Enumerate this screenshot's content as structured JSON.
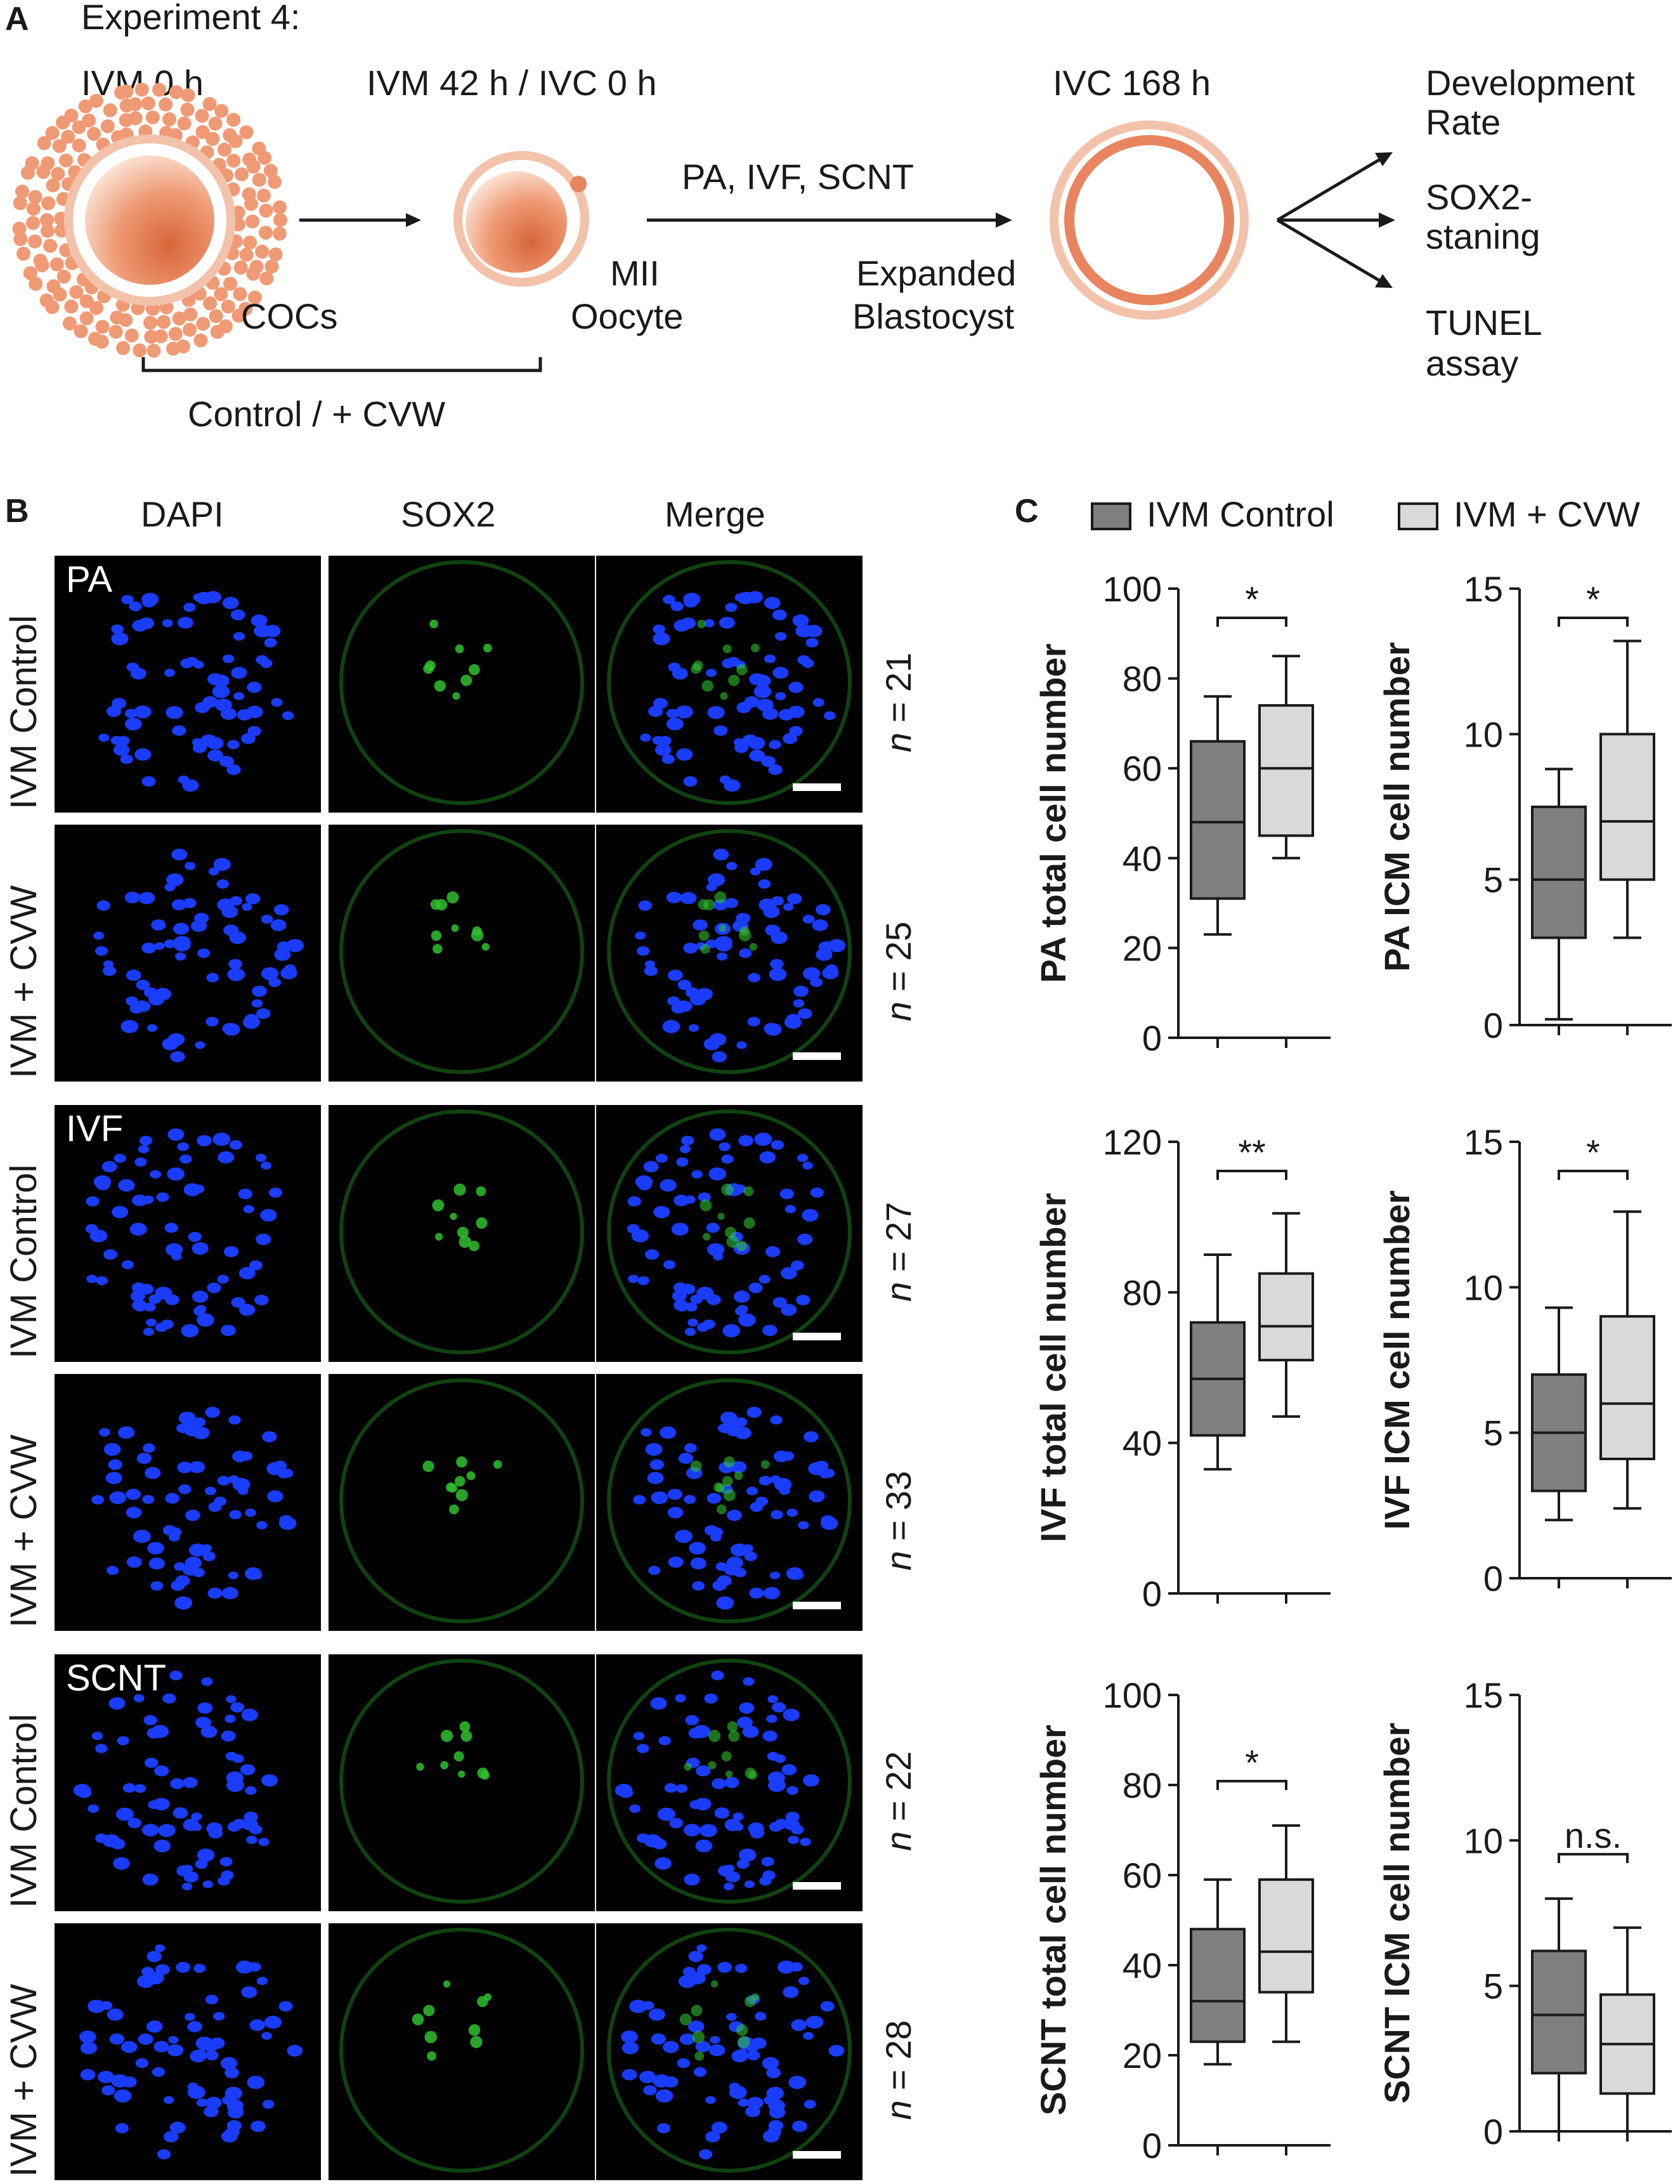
{
  "panel_a": {
    "letter": "A",
    "title": "Experiment 4:",
    "stage_ivm0": "IVM 0 h",
    "stage_ivm42": "IVM 42 h / IVC 0 h",
    "stage_ivc168": "IVC 168 h",
    "cocs": "COCs",
    "mii_line1": "MII",
    "mii_line2": "Oocyte",
    "methods": "PA, IVF, SCNT",
    "blast_line1": "Expanded",
    "blast_line2": "Blastocyst",
    "bracket_label": "Control / + CVW",
    "outcome1_line1": "Development",
    "outcome1_line2": "Rate",
    "outcome2_line1": "SOX2-",
    "outcome2_line2": "staning",
    "outcome3_line1": "TUNEL",
    "outcome3_line2": "assay",
    "colors": {
      "orange": "#e8855f",
      "light_orange": "#f3c2ab",
      "cell_fill": "#f09a75"
    }
  },
  "panel_b": {
    "letter": "B",
    "col_headers": [
      "DAPI",
      "SOX2",
      "Merge"
    ],
    "groups": [
      {
        "label": "PA",
        "rows": [
          {
            "condition": "IVM Control",
            "n_prefix": "n",
            "n_value": " = 21"
          },
          {
            "condition": "IVM + CVW",
            "n_prefix": "n",
            "n_value": " = 25"
          }
        ]
      },
      {
        "label": "IVF",
        "rows": [
          {
            "condition": "IVM Control",
            "n_prefix": "n",
            "n_value": " = 27"
          },
          {
            "condition": "IVM + CVW",
            "n_prefix": "n",
            "n_value": " = 33"
          }
        ]
      },
      {
        "label": "SCNT",
        "rows": [
          {
            "condition": "IVM Control",
            "n_prefix": "n",
            "n_value": " = 22"
          },
          {
            "condition": "IVM + CVW",
            "n_prefix": "n",
            "n_value": " = 28"
          }
        ]
      }
    ],
    "colors": {
      "dapi": "#1a3cff",
      "sox2": "#2fbf2f",
      "background": "#000000"
    }
  },
  "panel_c": {
    "letter": "C",
    "legend": [
      {
        "label": "IVM Control",
        "color": "#7f7f7f"
      },
      {
        "label": "IVM + CVW",
        "color": "#d9d9d9"
      }
    ]
  },
  "chart_data": [
    {
      "type": "box",
      "ylabel": "PA total cell number",
      "ylim": [
        0,
        100
      ],
      "yticks": [
        0,
        20,
        40,
        60,
        80,
        100
      ],
      "significance": "*",
      "series": [
        {
          "name": "IVM Control",
          "min": 23,
          "q1": 31,
          "median": 48,
          "q3": 66,
          "max": 76
        },
        {
          "name": "IVM + CVW",
          "min": 40,
          "q1": 45,
          "median": 60,
          "q3": 74,
          "max": 85
        }
      ]
    },
    {
      "type": "box",
      "ylabel": "PA ICM cell number",
      "ylim": [
        0,
        15
      ],
      "yticks": [
        0,
        5,
        10,
        15
      ],
      "significance": "*",
      "series": [
        {
          "name": "IVM Control",
          "min": 0.2,
          "q1": 3,
          "median": 5,
          "q3": 7.5,
          "max": 8.8
        },
        {
          "name": "IVM + CVW",
          "min": 3,
          "q1": 5,
          "median": 7,
          "q3": 10,
          "max": 13.2
        }
      ]
    },
    {
      "type": "box",
      "ylabel": "IVF total cell number",
      "ylim": [
        0,
        120
      ],
      "yticks": [
        0,
        40,
        80,
        120
      ],
      "significance": "**",
      "series": [
        {
          "name": "IVM Control",
          "min": 33,
          "q1": 42,
          "median": 57,
          "q3": 72,
          "max": 90
        },
        {
          "name": "IVM + CVW",
          "min": 47,
          "q1": 62,
          "median": 71,
          "q3": 85,
          "max": 101
        }
      ]
    },
    {
      "type": "box",
      "ylabel": "IVF ICM cell number",
      "ylim": [
        0,
        15
      ],
      "yticks": [
        0,
        5,
        10,
        15
      ],
      "significance": "*",
      "series": [
        {
          "name": "IVM Control",
          "min": 2,
          "q1": 3,
          "median": 5,
          "q3": 7,
          "max": 9.3
        },
        {
          "name": "IVM + CVW",
          "min": 2.4,
          "q1": 4.1,
          "median": 6,
          "q3": 9,
          "max": 12.6
        }
      ]
    },
    {
      "type": "box",
      "ylabel": "SCNT total cell number",
      "ylim": [
        0,
        100
      ],
      "yticks": [
        0,
        20,
        40,
        60,
        80,
        100
      ],
      "significance": "*",
      "series": [
        {
          "name": "IVM Control",
          "min": 18,
          "q1": 23,
          "median": 32,
          "q3": 48,
          "max": 59
        },
        {
          "name": "IVM + CVW",
          "min": 23,
          "q1": 34,
          "median": 43,
          "q3": 59,
          "max": 71
        }
      ]
    },
    {
      "type": "box",
      "ylabel": "SCNT ICM cell number",
      "ylim": [
        0,
        15
      ],
      "yticks": [
        0,
        5,
        10,
        15
      ],
      "significance": "n.s.",
      "series": [
        {
          "name": "IVM Control",
          "min": 0,
          "q1": 2,
          "median": 4,
          "q3": 6.2,
          "max": 8
        },
        {
          "name": "IVM + CVW",
          "min": 0,
          "q1": 1.3,
          "median": 3,
          "q3": 4.7,
          "max": 7
        }
      ]
    }
  ]
}
